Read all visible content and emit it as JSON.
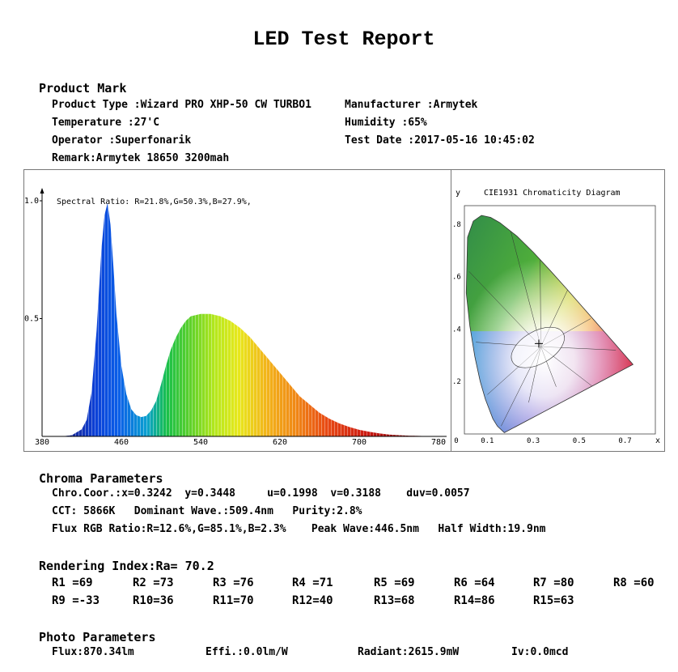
{
  "report": {
    "title": "LED Test Report"
  },
  "product": {
    "heading": "Product Mark",
    "product_type": "Product Type :Wizard PRO XHP-50 CW TURBO1",
    "manufacturer": "Manufacturer :Armytek",
    "temperature": "Temperature :27'C",
    "humidity": "Humidity :65%",
    "operator": "Operator :Superfonarik",
    "test_date": "Test Date :2017-05-16 10:45:02",
    "remark": "Remark:Armytek 18650 3200mah"
  },
  "chart_data": [
    {
      "type": "area",
      "annotation": "Spectral Ratio:  R=21.8%,G=50.3%,B=27.9%,",
      "x_ticks": [
        "380",
        "460",
        "540",
        "620",
        "700",
        "780"
      ],
      "y_ticks": [
        "1.0",
        "0.5"
      ],
      "xlim": [
        380,
        780
      ],
      "ylim": [
        0,
        1.0
      ],
      "x": [
        380,
        400,
        410,
        420,
        425,
        430,
        435,
        440,
        443,
        446,
        449,
        452,
        455,
        460,
        465,
        470,
        475,
        480,
        485,
        490,
        495,
        500,
        505,
        510,
        515,
        520,
        525,
        530,
        540,
        550,
        560,
        570,
        580,
        590,
        600,
        610,
        620,
        630,
        640,
        650,
        660,
        670,
        680,
        690,
        700,
        710,
        720,
        730,
        740,
        750,
        760,
        770,
        780
      ],
      "y": [
        0,
        0,
        0.005,
        0.03,
        0.07,
        0.19,
        0.45,
        0.8,
        0.94,
        0.99,
        0.9,
        0.72,
        0.52,
        0.3,
        0.18,
        0.115,
        0.09,
        0.082,
        0.087,
        0.11,
        0.15,
        0.22,
        0.3,
        0.37,
        0.42,
        0.46,
        0.49,
        0.51,
        0.52,
        0.52,
        0.51,
        0.49,
        0.46,
        0.42,
        0.37,
        0.32,
        0.27,
        0.22,
        0.17,
        0.135,
        0.1,
        0.075,
        0.055,
        0.04,
        0.028,
        0.02,
        0.013,
        0.008,
        0.005,
        0.003,
        0.002,
        0.001,
        0.0
      ]
    },
    {
      "type": "scatter",
      "title": "CIE1931 Chromaticity Diagram",
      "xlabel": "x",
      "ylabel": "y",
      "x_ticks": [
        "0",
        "0.1",
        "0.3",
        "0.5",
        "0.7"
      ],
      "y_ticks": [
        ".8",
        ".6",
        ".4",
        ".2"
      ],
      "xlim": [
        0,
        0.8
      ],
      "ylim": [
        0,
        0.9
      ],
      "point": {
        "x": 0.3242,
        "y": 0.3448
      }
    }
  ],
  "chroma": {
    "heading": "Chroma Parameters",
    "line1": "Chro.Coor.:x=0.3242  y=0.3448     u=0.1998  v=0.3188    duv=0.0057",
    "line2": "CCT: 5866K   Dominant Wave.:509.4nm   Purity:2.8%",
    "line3": "Flux RGB Ratio:R=12.6%,G=85.1%,B=2.3%    Peak Wave:446.5nm   Half Width:19.9nm"
  },
  "rendering": {
    "heading": "Rendering Index:Ra= 70.2",
    "row1": [
      "R1 =69",
      "R2 =73",
      "R3 =76",
      "R4 =71",
      "R5 =69",
      "R6 =64",
      "R7 =80",
      "R8 =60"
    ],
    "row2": [
      "R9 =-33",
      "R10=36",
      "R11=70",
      "R12=40",
      "R13=68",
      "R14=86",
      "R15=63"
    ]
  },
  "photo": {
    "heading": "Photo Parameters",
    "flux": "Flux:870.34lm",
    "effi": "Effi.:0.0lm/W",
    "radiant": "Radiant:2615.9mW",
    "iv": "Iv:0.0mcd"
  }
}
